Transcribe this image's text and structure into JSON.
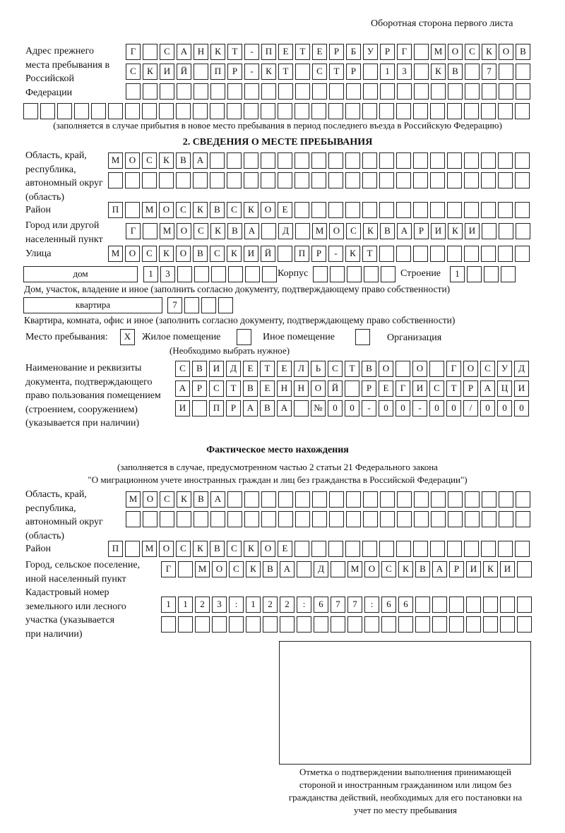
{
  "header": "Оборотная сторона первого листа",
  "prev_address": {
    "label": "Адрес прежнего места пребывания в Российской Федерации",
    "rows": [
      [
        "Г",
        "",
        "С",
        "А",
        "Н",
        "К",
        "Т",
        "-",
        "П",
        "Е",
        "Т",
        "Е",
        "Р",
        "Б",
        "У",
        "Р",
        "Г",
        "",
        "М",
        "О",
        "С",
        "К",
        "О",
        "В"
      ],
      [
        "С",
        "К",
        "И",
        "Й",
        "",
        "П",
        "Р",
        "-",
        "К",
        "Т",
        "",
        "С",
        "Т",
        "Р",
        "",
        "1",
        "3",
        "",
        "К",
        "В",
        "",
        "7",
        "",
        ""
      ],
      [
        "",
        "",
        "",
        "",
        "",
        "",
        "",
        "",
        "",
        "",
        "",
        "",
        "",
        "",
        "",
        "",
        "",
        "",
        "",
        "",
        "",
        "",
        "",
        ""
      ],
      [
        "",
        "",
        "",
        "",
        "",
        "",
        "",
        "",
        "",
        "",
        "",
        "",
        "",
        "",
        "",
        "",
        "",
        "",
        "",
        "",
        "",
        "",
        "",
        "",
        "",
        "",
        "",
        "",
        "",
        ""
      ]
    ],
    "note": "(заполняется в случае прибытия в новое место пребывания в период последнего въезда в Российскую Федерацию)"
  },
  "section2": {
    "title": "2. СВЕДЕНИЯ О МЕСТЕ ПРЕБЫВАНИЯ",
    "region_label": "Область, край, республика, автономный округ (область)",
    "region_rows": [
      [
        "М",
        "О",
        "С",
        "К",
        "В",
        "А",
        "",
        "",
        "",
        "",
        "",
        "",
        "",
        "",
        "",
        "",
        "",
        "",
        "",
        "",
        "",
        "",
        "",
        "",
        ""
      ],
      [
        "",
        "",
        "",
        "",
        "",
        "",
        "",
        "",
        "",
        "",
        "",
        "",
        "",
        "",
        "",
        "",
        "",
        "",
        "",
        "",
        "",
        "",
        "",
        "",
        ""
      ]
    ],
    "district_label": "Район",
    "district": [
      "П",
      "",
      "М",
      "О",
      "С",
      "К",
      "В",
      "С",
      "К",
      "О",
      "Е",
      "",
      "",
      "",
      "",
      "",
      "",
      "",
      "",
      "",
      "",
      "",
      "",
      "",
      ""
    ],
    "city_label": "Город или другой населенный пункт",
    "city": [
      "Г",
      "",
      "М",
      "О",
      "С",
      "К",
      "В",
      "А",
      "",
      "Д",
      "",
      "М",
      "О",
      "С",
      "К",
      "В",
      "А",
      "Р",
      "И",
      "К",
      "И",
      "",
      "",
      ""
    ],
    "street_label": "Улица",
    "street": [
      "М",
      "О",
      "С",
      "К",
      "О",
      "В",
      "С",
      "К",
      "И",
      "Й",
      "",
      "П",
      "Р",
      "-",
      "К",
      "Т",
      "",
      "",
      "",
      "",
      "",
      "",
      "",
      "",
      ""
    ],
    "house_type": "дом",
    "house": [
      "1",
      "3",
      "",
      "",
      "",
      "",
      "",
      ""
    ],
    "korpus_label": "Корпус",
    "korpus": [
      "",
      "",
      "",
      "",
      ""
    ],
    "building_label": "Строение",
    "building": [
      "1",
      "",
      "",
      ""
    ],
    "house_note": "Дом, участок, владение и иное (заполнить согласно документу, подтверждающему право собственности)",
    "flat_type": "квартира",
    "flat": [
      "7",
      "",
      "",
      ""
    ],
    "flat_note": "Квартира, комната, офис и иное (заполнить согласно документу, подтверждающему право собственности)",
    "stay_label": "Место пребывания:",
    "options": [
      {
        "label": "Жилое помещение",
        "mark": "X"
      },
      {
        "label": "Иное помещение",
        "mark": ""
      },
      {
        "label": "Организация",
        "mark": ""
      }
    ],
    "choose_note": "(Необходимо выбрать нужное)",
    "doc_label": "Наименование и реквизиты документа, подтверждающего право пользования помещением (строением, сооружением) (указывается при наличии)",
    "doc_rows": [
      [
        "С",
        "В",
        "И",
        "Д",
        "Е",
        "Т",
        "Е",
        "Л",
        "Ь",
        "С",
        "Т",
        "В",
        "О",
        "",
        "О",
        "",
        "Г",
        "О",
        "С",
        "У",
        "Д"
      ],
      [
        "А",
        "Р",
        "С",
        "Т",
        "В",
        "Е",
        "Н",
        "Н",
        "О",
        "Й",
        "",
        "Р",
        "Е",
        "Г",
        "И",
        "С",
        "Т",
        "Р",
        "А",
        "Ц",
        "И"
      ],
      [
        "И",
        "",
        "П",
        "Р",
        "А",
        "В",
        "А",
        "",
        "№",
        "0",
        "0",
        "-",
        "0",
        "0",
        "-",
        "0",
        "0",
        "/",
        "0",
        "0",
        "0"
      ]
    ]
  },
  "actual": {
    "title": "Фактическое место нахождения",
    "note1": "(заполняется в случае, предусмотренном частью 2 статьи 21 Федерального закона",
    "note2": "\"О миграционном учете иностранных граждан и лиц без гражданства в Российской Федерации\")",
    "region_label": "Область, край, республика, автономный округ (область)",
    "region_rows": [
      [
        "М",
        "О",
        "С",
        "К",
        "В",
        "А",
        "",
        "",
        "",
        "",
        "",
        "",
        "",
        "",
        "",
        "",
        "",
        "",
        "",
        "",
        "",
        "",
        "",
        ""
      ],
      [
        "",
        "",
        "",
        "",
        "",
        "",
        "",
        "",
        "",
        "",
        "",
        "",
        "",
        "",
        "",
        "",
        "",
        "",
        "",
        "",
        "",
        "",
        "",
        ""
      ]
    ],
    "district_label": "Район",
    "district": [
      "П",
      "",
      "М",
      "О",
      "С",
      "К",
      "В",
      "С",
      "К",
      "О",
      "Е",
      "",
      "",
      "",
      "",
      "",
      "",
      "",
      "",
      "",
      "",
      "",
      "",
      "",
      ""
    ],
    "city_label": "Город, сельское поселение, иной населенный пункт",
    "city": [
      "Г",
      "",
      "М",
      "О",
      "С",
      "К",
      "В",
      "А",
      "",
      "Д",
      "",
      "М",
      "О",
      "С",
      "К",
      "В",
      "А",
      "Р",
      "И",
      "К",
      "И",
      ""
    ],
    "cadastral_label": "Кадастровый номер земельного или лесного участка (указывается при наличии)",
    "cadastral_rows": [
      [
        "1",
        "1",
        "2",
        "3",
        ":",
        "1",
        "2",
        "2",
        ":",
        "6",
        "7",
        "7",
        ":",
        "6",
        "6",
        "",
        "",
        "",
        "",
        "",
        "",
        ""
      ],
      [
        "",
        "",
        "",
        "",
        "",
        "",
        "",
        "",
        "",
        "",
        "",
        "",
        "",
        "",
        "",
        "",
        "",
        "",
        "",
        "",
        "",
        ""
      ]
    ]
  },
  "stamp_caption": "Отметка о подтверждении выполнения принимающей стороной и иностранным гражданином или лицом без гражданства действий, необходимых для его постановки на учет по месту пребывания"
}
